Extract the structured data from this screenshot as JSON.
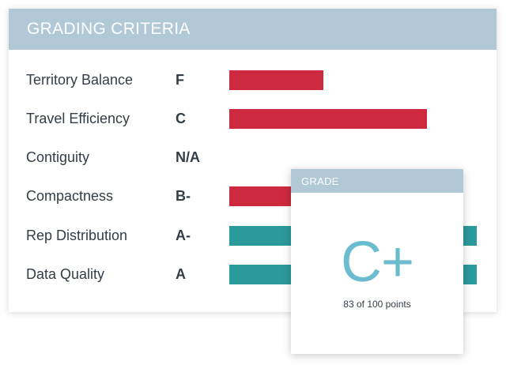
{
  "criteria": {
    "title": "GRADING CRITERIA",
    "rows": [
      {
        "label": "Territory Balance",
        "grade": "F",
        "score": 0.38,
        "status": "fail"
      },
      {
        "label": "Travel Efficiency",
        "grade": "C",
        "score": 0.8,
        "status": "fail"
      },
      {
        "label": "Contiguity",
        "grade": "N/A",
        "score": 0,
        "status": "none"
      },
      {
        "label": "Compactness",
        "grade": "B-",
        "score": 0.85,
        "status": "fail"
      },
      {
        "label": "Rep Distribution",
        "grade": "A-",
        "score": 1.0,
        "status": "pass"
      },
      {
        "label": "Data Quality",
        "grade": "A",
        "score": 1.0,
        "status": "pass"
      }
    ]
  },
  "grade": {
    "title": "GRADE",
    "value": "C+",
    "points": "83 of 100 points"
  },
  "colors": {
    "header": "#b1c8d6",
    "fail": "#cd2a3f",
    "pass": "#2b9a9b",
    "grade_text": "#6cbccf"
  }
}
